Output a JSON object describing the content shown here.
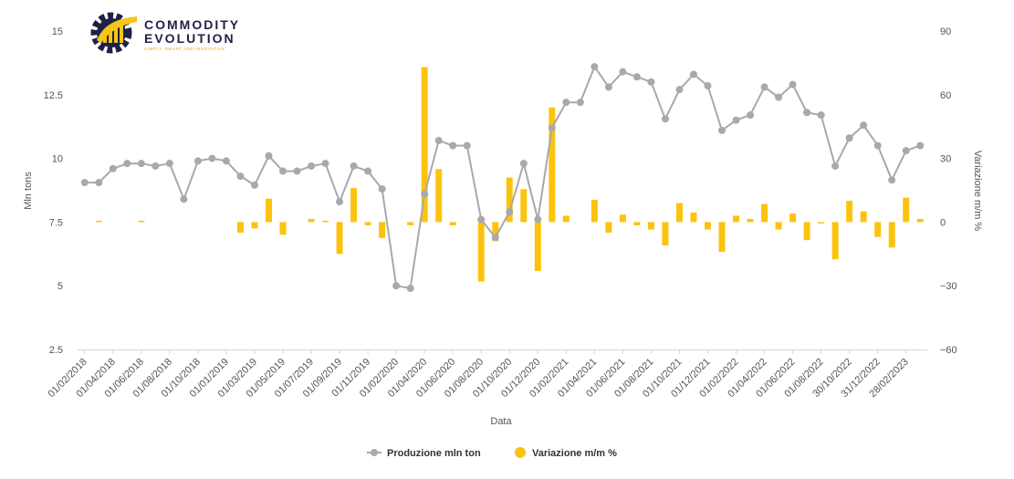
{
  "logo": {
    "line1": "COMMODITY",
    "line2": "EVOLUTION",
    "tagline": "SIMPLY, SMART AND INNOVATIVE",
    "gear_color": "#1f2247",
    "accent_color": "#f5c518"
  },
  "chart_data": {
    "type": "bar+line",
    "xlabel": "Data",
    "ylabel_left": "Mln tons",
    "ylabel_right": "Variazione m/m %",
    "ylim_left": [
      2.5,
      15
    ],
    "yticks_left": [
      "2.5",
      "5",
      "7.5",
      "10",
      "12.5",
      "15"
    ],
    "ylim_right": [
      -60,
      90
    ],
    "yticks_right": [
      "−60",
      "−30",
      "0",
      "30",
      "60",
      "90"
    ],
    "grid": false,
    "legend_position": "bottom-center",
    "x_tick_labels": [
      "01/02/2018",
      "01/04/2018",
      "01/06/2018",
      "01/08/2018",
      "01/10/2018",
      "01/01/2019",
      "01/03/2019",
      "01/05/2019",
      "01/07/2019",
      "01/09/2019",
      "01/11/2019",
      "01/02/2020",
      "01/04/2020",
      "01/06/2020",
      "01/08/2020",
      "01/10/2020",
      "01/12/2020",
      "01/02/2021",
      "01/04/2021",
      "01/06/2021",
      "01/08/2021",
      "01/10/2021",
      "01/12/2021",
      "01/02/2022",
      "01/04/2022",
      "01/06/2022",
      "01/08/2022",
      "30/10/2022",
      "31/12/2022",
      "28/02/2023"
    ],
    "series": [
      {
        "name": "Produzione mln ton",
        "type": "line",
        "axis": "left",
        "color": "#a8a8ae",
        "values": [
          9.05,
          9.05,
          9.6,
          9.8,
          9.8,
          9.7,
          9.8,
          8.4,
          9.9,
          10.0,
          9.9,
          9.3,
          8.95,
          10.1,
          9.5,
          9.5,
          9.7,
          9.8,
          8.3,
          9.7,
          9.5,
          8.8,
          5.0,
          4.9,
          8.6,
          10.7,
          10.5,
          10.5,
          7.6,
          6.9,
          7.9,
          9.8,
          7.6,
          11.2,
          12.2,
          12.2,
          13.6,
          12.8,
          13.4,
          13.2,
          13.0,
          11.55,
          12.7,
          13.3,
          12.85,
          11.1,
          11.5,
          11.7,
          12.8,
          12.4,
          12.9,
          11.8,
          11.7,
          9.7,
          10.8,
          11.3,
          10.5,
          9.15,
          10.3,
          10.5
        ]
      },
      {
        "name": "Variazione m/m %",
        "type": "bar",
        "axis": "right",
        "color": "#fcc30e",
        "values": [
          null,
          0,
          null,
          null,
          0,
          null,
          null,
          null,
          null,
          null,
          null,
          -5,
          -3,
          11,
          -6,
          null,
          1.5,
          0.5,
          -15,
          16,
          -1.5,
          -7.5,
          null,
          -1.5,
          73,
          25,
          -1.5,
          null,
          -28,
          -9,
          21,
          15.5,
          -23,
          54,
          3,
          null,
          10.5,
          -5,
          3.5,
          -1.5,
          -3.5,
          -11,
          9,
          4.5,
          -3.5,
          -14,
          3,
          1.5,
          8.5,
          -3.5,
          4,
          -8.5,
          -0.5,
          -17.5,
          10,
          5,
          -7,
          -12,
          11.5,
          1.5
        ]
      }
    ]
  }
}
